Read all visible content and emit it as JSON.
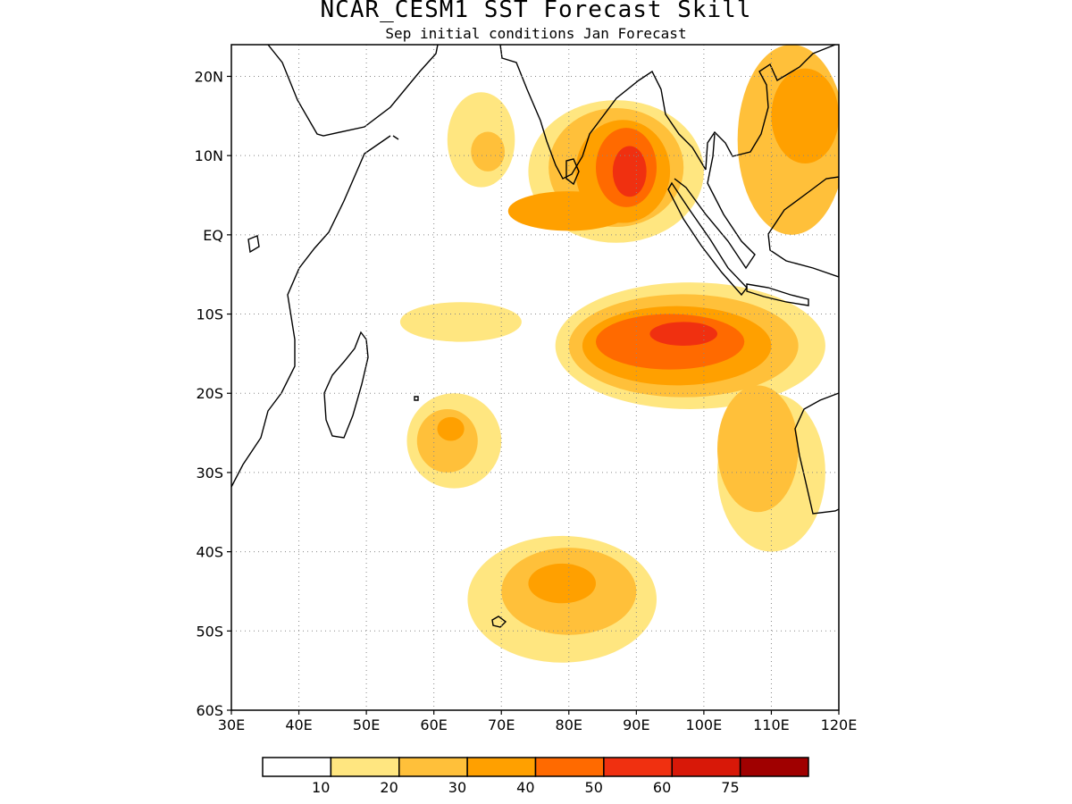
{
  "title": "NCAR_CESM1  SST Forecast Skill",
  "subtitle": "Sep initial conditions  Jan Forecast",
  "map": {
    "lon_range": [
      30,
      120
    ],
    "lat_range": [
      -60,
      24
    ],
    "x_ticks": [
      {
        "lon": 30,
        "label": "30E"
      },
      {
        "lon": 40,
        "label": "40E"
      },
      {
        "lon": 50,
        "label": "50E"
      },
      {
        "lon": 60,
        "label": "60E"
      },
      {
        "lon": 70,
        "label": "70E"
      },
      {
        "lon": 80,
        "label": "80E"
      },
      {
        "lon": 90,
        "label": "90E"
      },
      {
        "lon": 100,
        "label": "100E"
      },
      {
        "lon": 110,
        "label": "110E"
      },
      {
        "lon": 120,
        "label": "120E"
      }
    ],
    "y_ticks": [
      {
        "lat": 20,
        "label": "20N"
      },
      {
        "lat": 10,
        "label": "10N"
      },
      {
        "lat": 0,
        "label": "EQ"
      },
      {
        "lat": -10,
        "label": "10S"
      },
      {
        "lat": -20,
        "label": "20S"
      },
      {
        "lat": -30,
        "label": "30S"
      },
      {
        "lat": -40,
        "label": "40S"
      },
      {
        "lat": -50,
        "label": "50S"
      },
      {
        "lat": -60,
        "label": "60S"
      }
    ],
    "grid": "dotted"
  },
  "colorbar": {
    "colors": [
      "#ffffff",
      "#ffe680",
      "#ffc03a",
      "#ffa000",
      "#ff6a00",
      "#f03010",
      "#d81808",
      "#a00000"
    ],
    "labels": [
      "10",
      "20",
      "30",
      "40",
      "50",
      "60",
      "75"
    ]
  },
  "skill_regions": [
    {
      "name": "arabian-sea",
      "lon": 67,
      "lat": 12,
      "rlon": 5,
      "rlat": 6,
      "level": 1
    },
    {
      "name": "arabian-sea-core",
      "lon": 68,
      "lat": 10.5,
      "rlon": 2.5,
      "rlat": 2.5,
      "level": 2
    },
    {
      "name": "bay-of-bengal-outer",
      "lon": 87,
      "lat": 8,
      "rlon": 13,
      "rlat": 9,
      "level": 1
    },
    {
      "name": "bay-of-bengal",
      "lon": 87,
      "lat": 8.5,
      "rlon": 10,
      "rlat": 7.5,
      "level": 2
    },
    {
      "name": "bay-of-bengal-mid",
      "lon": 88,
      "lat": 8,
      "rlon": 7,
      "rlat": 6.5,
      "level": 3
    },
    {
      "name": "bay-of-bengal-core",
      "lon": 88.5,
      "lat": 8.5,
      "rlon": 4.5,
      "rlat": 5,
      "level": 4
    },
    {
      "name": "bay-of-bengal-peak",
      "lon": 89,
      "lat": 8,
      "rlon": 2.5,
      "rlat": 3.2,
      "level": 5
    },
    {
      "name": "bay-south-band",
      "lon": 80,
      "lat": 3,
      "rlon": 9,
      "rlat": 2.5,
      "level": 3
    },
    {
      "name": "south-china-sea",
      "lon": 113,
      "lat": 12,
      "rlon": 8,
      "rlat": 12,
      "level": 2
    },
    {
      "name": "south-china-sea-inner",
      "lon": 115,
      "lat": 15,
      "rlon": 5,
      "rlat": 6,
      "level": 3
    },
    {
      "name": "tropical-south-outer",
      "lon": 98,
      "lat": -14,
      "rlon": 20,
      "rlat": 8,
      "level": 1
    },
    {
      "name": "tropical-south",
      "lon": 97,
      "lat": -14,
      "rlon": 17,
      "rlat": 6.5,
      "level": 2
    },
    {
      "name": "tropical-south-mid",
      "lon": 96,
      "lat": -14,
      "rlon": 14,
      "rlat": 5,
      "level": 3
    },
    {
      "name": "tropical-south-core",
      "lon": 95,
      "lat": -13.5,
      "rlon": 11,
      "rlat": 3.5,
      "level": 4
    },
    {
      "name": "tropical-south-peak",
      "lon": 97,
      "lat": -12.5,
      "rlon": 5,
      "rlat": 1.5,
      "level": 5
    },
    {
      "name": "west-australia-band",
      "lon": 108,
      "lat": -27,
      "rlon": 6,
      "rlat": 8,
      "level": 2
    },
    {
      "name": "west-australia-outer",
      "lon": 110,
      "lat": -30,
      "rlon": 8,
      "rlat": 10,
      "level": 1
    },
    {
      "name": "tropical-south-west",
      "lon": 64,
      "lat": -11,
      "rlon": 9,
      "rlat": 2.5,
      "level": 1
    },
    {
      "name": "mascarene",
      "lon": 63,
      "lat": -26,
      "rlon": 7,
      "rlat": 6,
      "level": 1
    },
    {
      "name": "mascarene-mid",
      "lon": 62,
      "lat": -26,
      "rlon": 4.5,
      "rlat": 4,
      "level": 2
    },
    {
      "name": "mascarene-core",
      "lon": 62.5,
      "lat": -24.5,
      "rlon": 2,
      "rlat": 1.5,
      "level": 3
    },
    {
      "name": "southern-ocean",
      "lon": 79,
      "lat": -46,
      "rlon": 14,
      "rlat": 8,
      "level": 1
    },
    {
      "name": "southern-ocean-mid",
      "lon": 80,
      "lat": -45,
      "rlon": 10,
      "rlat": 5.5,
      "level": 2
    },
    {
      "name": "southern-ocean-core",
      "lon": 79,
      "lat": -44,
      "rlon": 5,
      "rlat": 2.5,
      "level": 3
    }
  ]
}
